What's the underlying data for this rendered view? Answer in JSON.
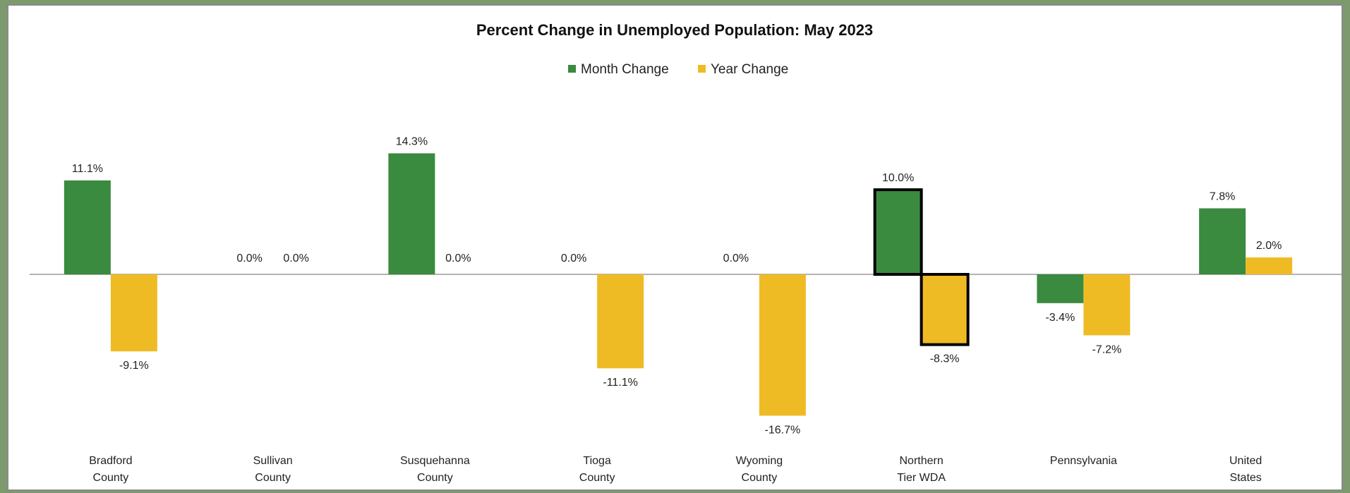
{
  "chart_data": {
    "type": "bar",
    "title": "Percent Change in Unemployed Population: May 2023",
    "legend_position": "top-center",
    "grid": false,
    "categories": [
      [
        "Bradford",
        "County"
      ],
      [
        "Sullivan",
        "County"
      ],
      [
        "Susquehanna",
        "County"
      ],
      [
        "Tioga",
        "County"
      ],
      [
        "Wyoming",
        "County"
      ],
      [
        "Northern",
        "Tier WDA"
      ],
      [
        "Pennsylvania"
      ],
      [
        "United",
        "States"
      ]
    ],
    "series": [
      {
        "name": "Month Change",
        "color": "#3a8a3f",
        "values": [
          11.1,
          0.0,
          14.3,
          0.0,
          0.0,
          10.0,
          -3.4,
          7.8
        ],
        "labels": [
          "11.1%",
          "0.0%",
          "14.3%",
          "0.0%",
          "0.0%",
          "10.0%",
          "-3.4%",
          "7.8%"
        ]
      },
      {
        "name": "Year Change",
        "color": "#efbb24",
        "values": [
          -9.1,
          0.0,
          0.0,
          -11.1,
          -16.7,
          -8.3,
          -7.2,
          2.0
        ],
        "labels": [
          "-9.1%",
          "0.0%",
          "0.0%",
          "-11.1%",
          "-16.7%",
          "-8.3%",
          "-7.2%",
          "2.0%"
        ]
      }
    ],
    "highlighted_category_index": 5,
    "ylim": [
      -20,
      20
    ]
  }
}
